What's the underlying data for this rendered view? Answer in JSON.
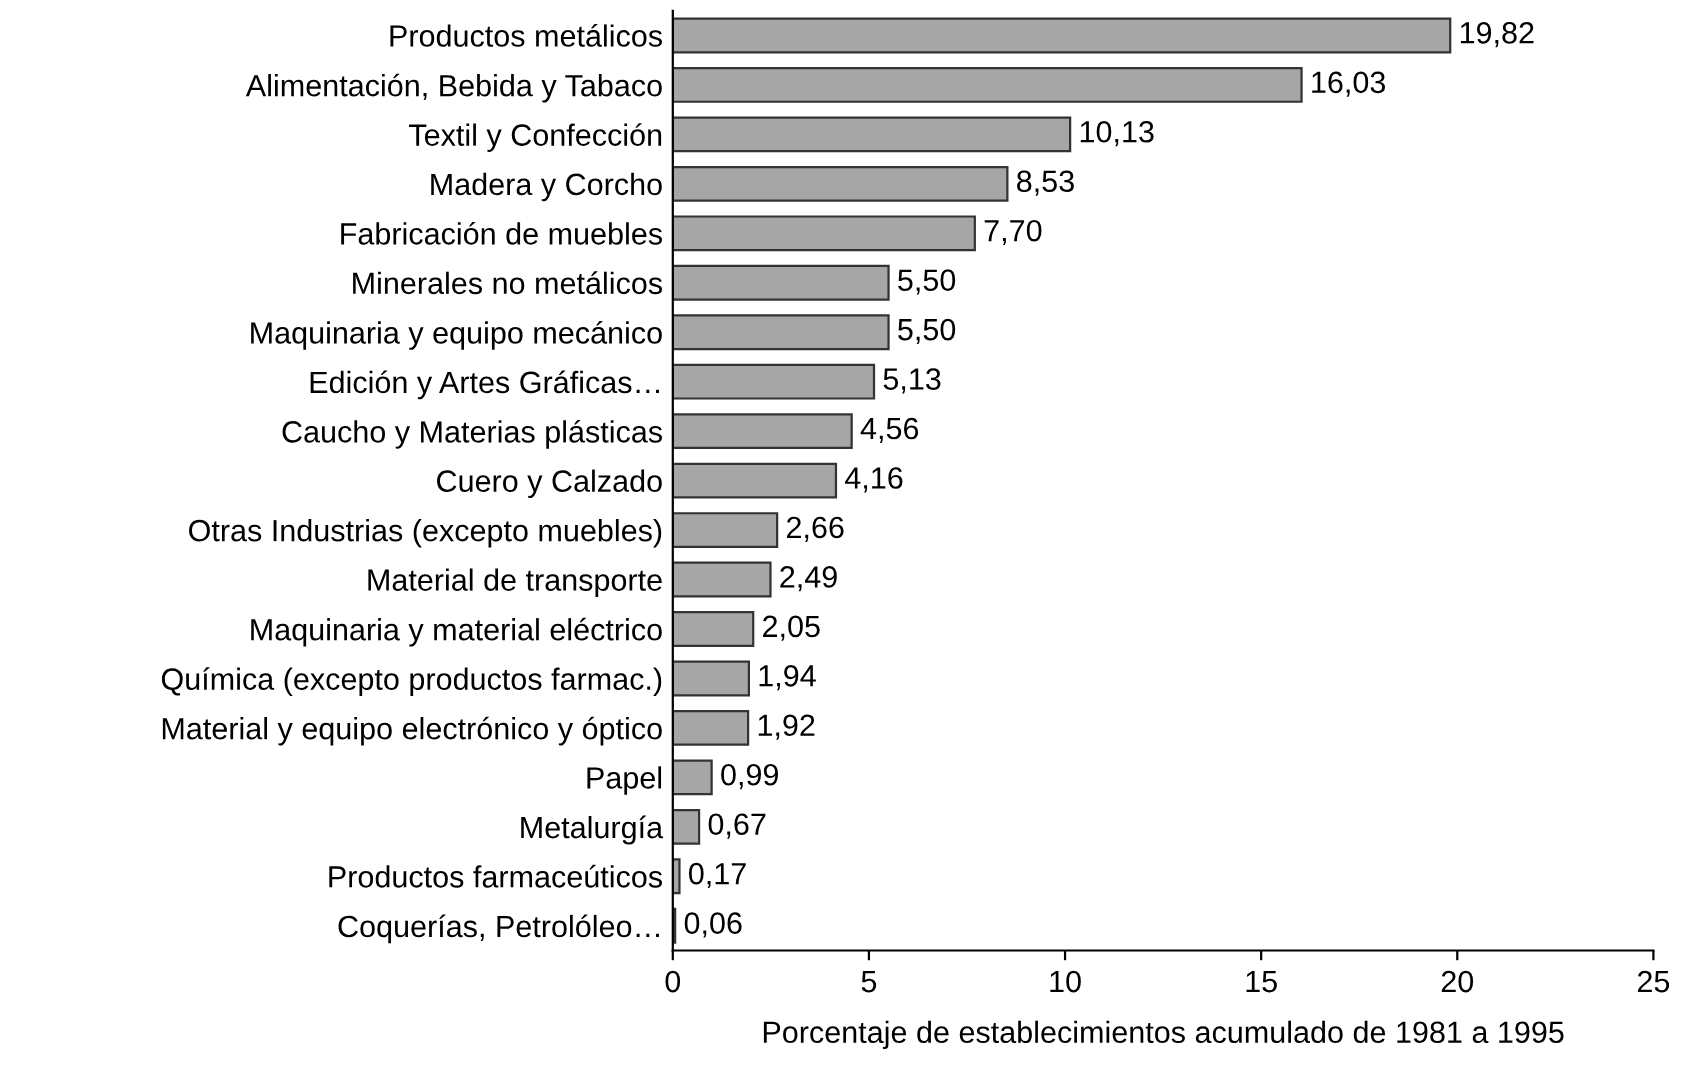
{
  "chart_data": {
    "type": "bar",
    "orientation": "horizontal",
    "xlabel": "Porcentaje de establecimientos acumulado de 1981 a 1995",
    "categories": [
      "Productos metálicos",
      "Alimentación, Bebida y Tabaco",
      "Textil y Confección",
      "Madera y Corcho",
      "Fabricación de muebles",
      "Minerales no metálicos",
      "Maquinaria y equipo mecánico",
      "Edición y Artes Gráficas…",
      "Caucho y Materias plásticas",
      "Cuero y Calzado",
      "Otras Industrias (excepto muebles)",
      "Material de transporte",
      "Maquinaria y material eléctrico",
      "Química (excepto productos farmac.)",
      "Material y equipo electrónico y óptico",
      "Papel",
      "Metalurgía",
      "Productos farmaceúticos",
      "Coquerías, Petrolóleo…"
    ],
    "values": [
      19.82,
      16.03,
      10.13,
      8.53,
      7.7,
      5.5,
      5.5,
      5.13,
      4.56,
      4.16,
      2.66,
      2.49,
      2.05,
      1.94,
      1.92,
      0.99,
      0.67,
      0.17,
      0.06
    ],
    "value_labels": [
      "19,82",
      "16,03",
      "10,13",
      "8,53",
      "7,70",
      "5,50",
      "5,50",
      "5,13",
      "4,56",
      "4,16",
      "2,66",
      "2,49",
      "2,05",
      "1,94",
      "1,92",
      "0,99",
      "0,67",
      "0,17",
      "0,06"
    ],
    "color": "#a6a6a6",
    "xlim": [
      0,
      25
    ],
    "xticks": [
      0,
      5,
      10,
      15,
      20,
      25
    ],
    "grid": false
  }
}
